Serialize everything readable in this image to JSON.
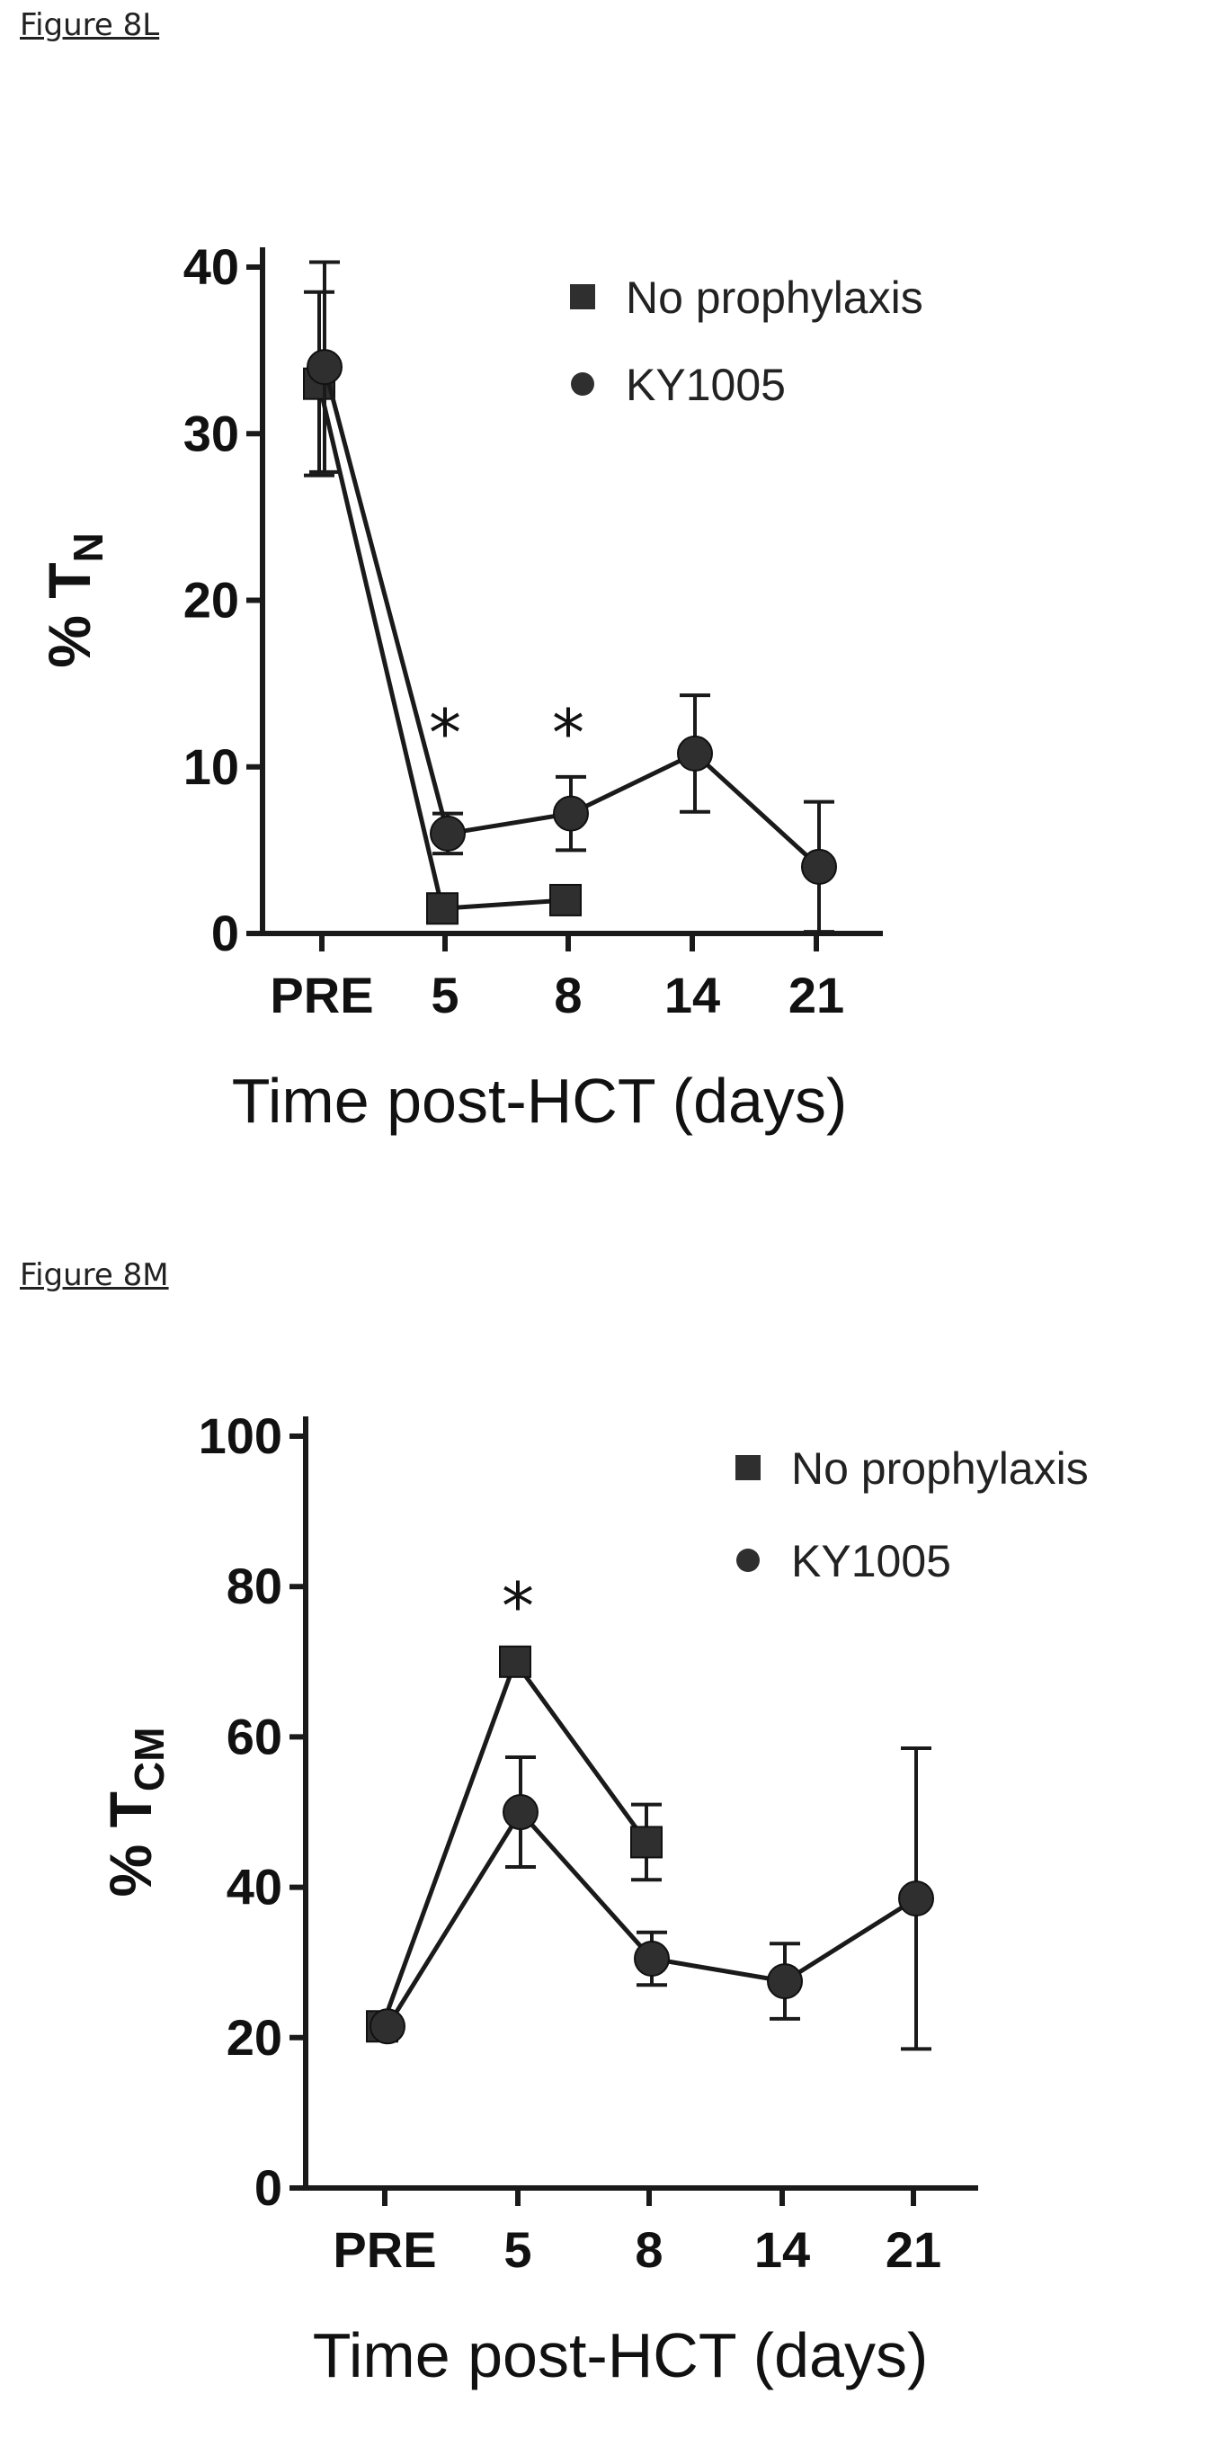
{
  "figures": [
    {
      "label": "Figure 8L"
    },
    {
      "label": "Figure 8M"
    }
  ],
  "chart_data": [
    {
      "type": "line",
      "title": "",
      "ylabel_main": "% T",
      "ylabel_sub": "N",
      "xlabel": "Time post-HCT (days)",
      "categories": [
        "PRE",
        "5",
        "8",
        "14",
        "21"
      ],
      "ylim": [
        0,
        40
      ],
      "yticks": [
        0,
        10,
        20,
        30,
        40
      ],
      "legend": {
        "placement": "top-right"
      },
      "series": [
        {
          "name": "No prophylaxis",
          "marker": "square",
          "values": [
            33,
            1.5,
            2,
            null,
            null
          ],
          "errors": [
            5.5,
            0.3,
            0.3,
            null,
            null
          ]
        },
        {
          "name": "KY1005",
          "marker": "circle",
          "values": [
            34,
            6,
            7.2,
            10.8,
            4
          ],
          "errors": [
            6.3,
            1.2,
            2.2,
            3.5,
            3.9
          ]
        }
      ],
      "annotations": [
        {
          "text": "*",
          "category": "5"
        },
        {
          "text": "*",
          "category": "8"
        }
      ]
    },
    {
      "type": "line",
      "title": "",
      "ylabel_main": "% T",
      "ylabel_sub": "CM",
      "xlabel": "Time post-HCT (days)",
      "categories": [
        "PRE",
        "5",
        "8",
        "14",
        "21"
      ],
      "ylim": [
        0,
        100
      ],
      "yticks": [
        0,
        20,
        40,
        60,
        80,
        100
      ],
      "legend": {
        "placement": "top-right"
      },
      "series": [
        {
          "name": "No prophylaxis",
          "marker": "square",
          "values": [
            21.5,
            70,
            46,
            null,
            null
          ],
          "errors": [
            1,
            1.2,
            5,
            null,
            null
          ]
        },
        {
          "name": "KY1005",
          "marker": "circle",
          "values": [
            21.5,
            50,
            30.5,
            27.5,
            38.5
          ],
          "errors": [
            1,
            7.3,
            3.5,
            5,
            20
          ]
        }
      ],
      "annotations": [
        {
          "text": "*",
          "category": "5"
        }
      ]
    }
  ]
}
